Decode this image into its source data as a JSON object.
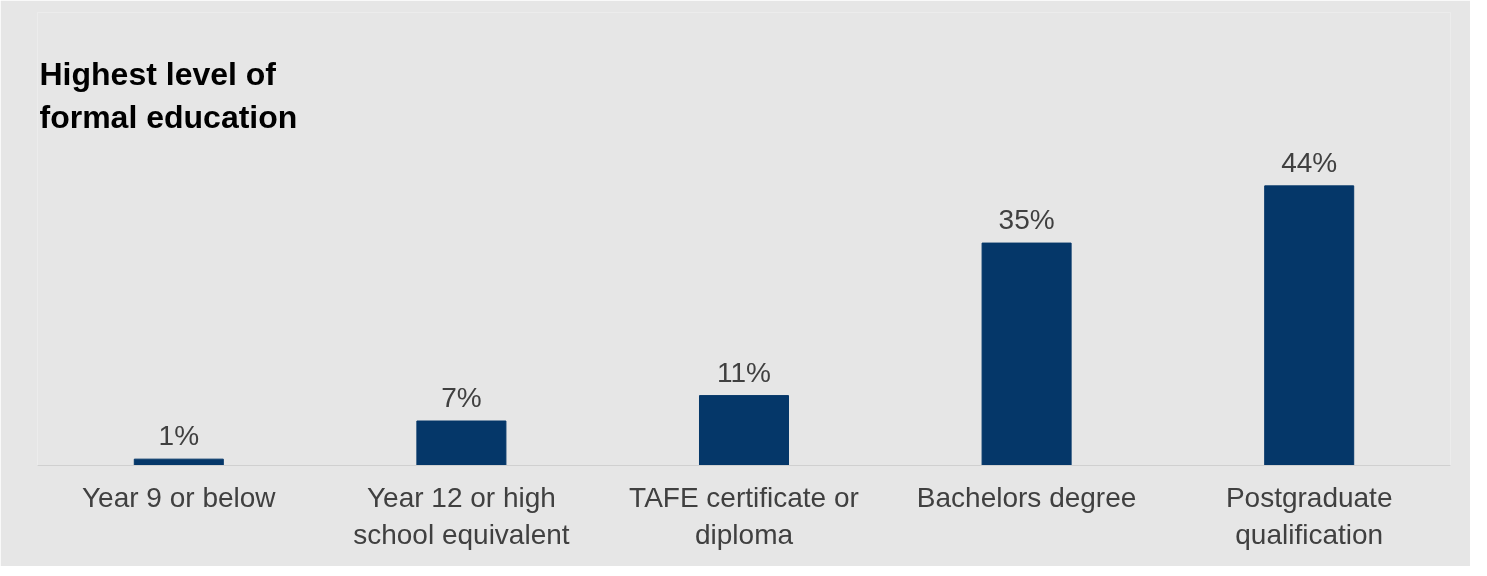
{
  "chart_data": {
    "type": "bar",
    "title": "Highest level of formal education",
    "categories": [
      "Year 9 or below",
      "Year 12 or high school equivalent",
      "TAFE certificate or diploma",
      "Bachelors degree",
      "Postgraduate qualification"
    ],
    "values": [
      1,
      7,
      11,
      35,
      44
    ],
    "value_labels": [
      "1%",
      "7%",
      "11%",
      "35%",
      "44%"
    ],
    "color": "#053769"
  }
}
